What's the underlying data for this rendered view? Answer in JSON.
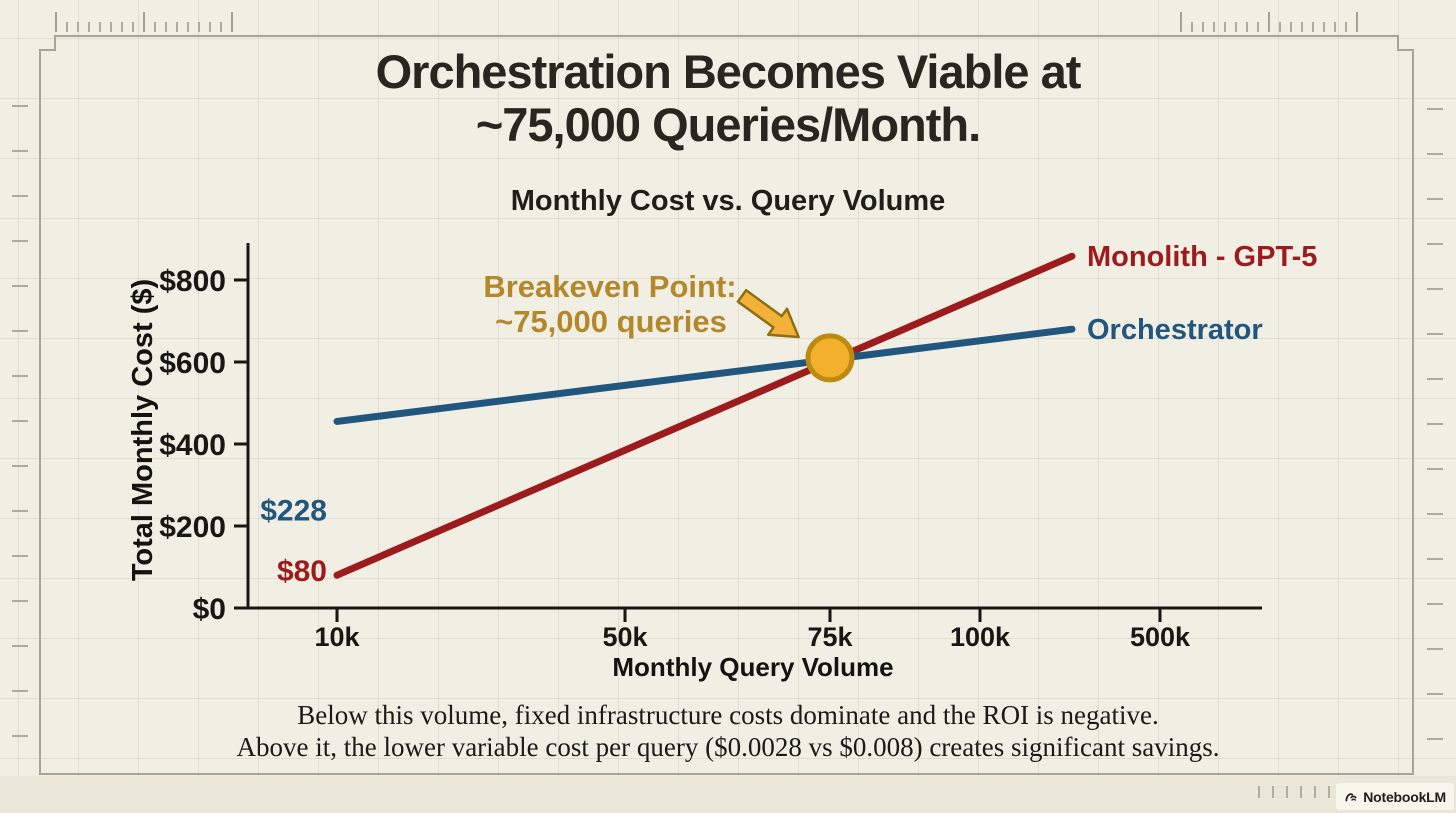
{
  "page": {
    "title_line1": "Orchestration Becomes Viable at",
    "title_line2": "~75,000 Queries/Month.",
    "footer_line1": "Below this volume, fixed infrastructure costs dominate and the ROI is negative.",
    "footer_line2": "Above it, the lower variable cost per query ($0.0028 vs $0.008) creates significant savings.",
    "badge_label": "NotebookLM",
    "colors": {
      "background": "#f1eee4",
      "title_text": "#29261f",
      "monolith_red": "#9c1b1d",
      "orchestrator_blue": "#21567f",
      "breakeven_gold_text": "#b3882a",
      "breakeven_marker_fill": "#f2b02c",
      "breakeven_marker_stroke": "#bd8a10",
      "axis_black": "#191713"
    }
  },
  "chart_data": {
    "type": "line",
    "title": "Monthly Cost vs. Query Volume",
    "xlabel": "Monthly Query Volume",
    "ylabel": "Total Monthly Cost ($)",
    "x_ticks": [
      "10k",
      "50k",
      "75k",
      "100k",
      "500k"
    ],
    "y_ticks": [
      "$0",
      "$200",
      "$400",
      "$600",
      "$800"
    ],
    "y_tick_values": [
      0,
      200,
      400,
      600,
      800
    ],
    "ylim": [
      0,
      880
    ],
    "grid": false,
    "legend_position": "right-of-line-ends",
    "series": [
      {
        "name": "Monolith - GPT-5",
        "color": "#9c1b1d",
        "start_x": "10k",
        "start_cost": 80,
        "end_cost": 858,
        "value_label": "$80",
        "value_label_cost": 80
      },
      {
        "name": "Orchestrator",
        "color": "#21567f",
        "start_x": "10k",
        "start_cost": 455,
        "end_cost": 680,
        "value_label": "$228",
        "value_label_cost": 228
      }
    ],
    "annotation": {
      "line1": "Breakeven Point:",
      "line2": "~75,000 queries",
      "x": "75k",
      "cost": 610,
      "text_color": "#b3882a",
      "arrow_fill": "#f2b23a",
      "arrow_stroke": "#8f6d13",
      "marker_fill": "#f2b02c",
      "marker_stroke": "#bd8a10"
    }
  }
}
